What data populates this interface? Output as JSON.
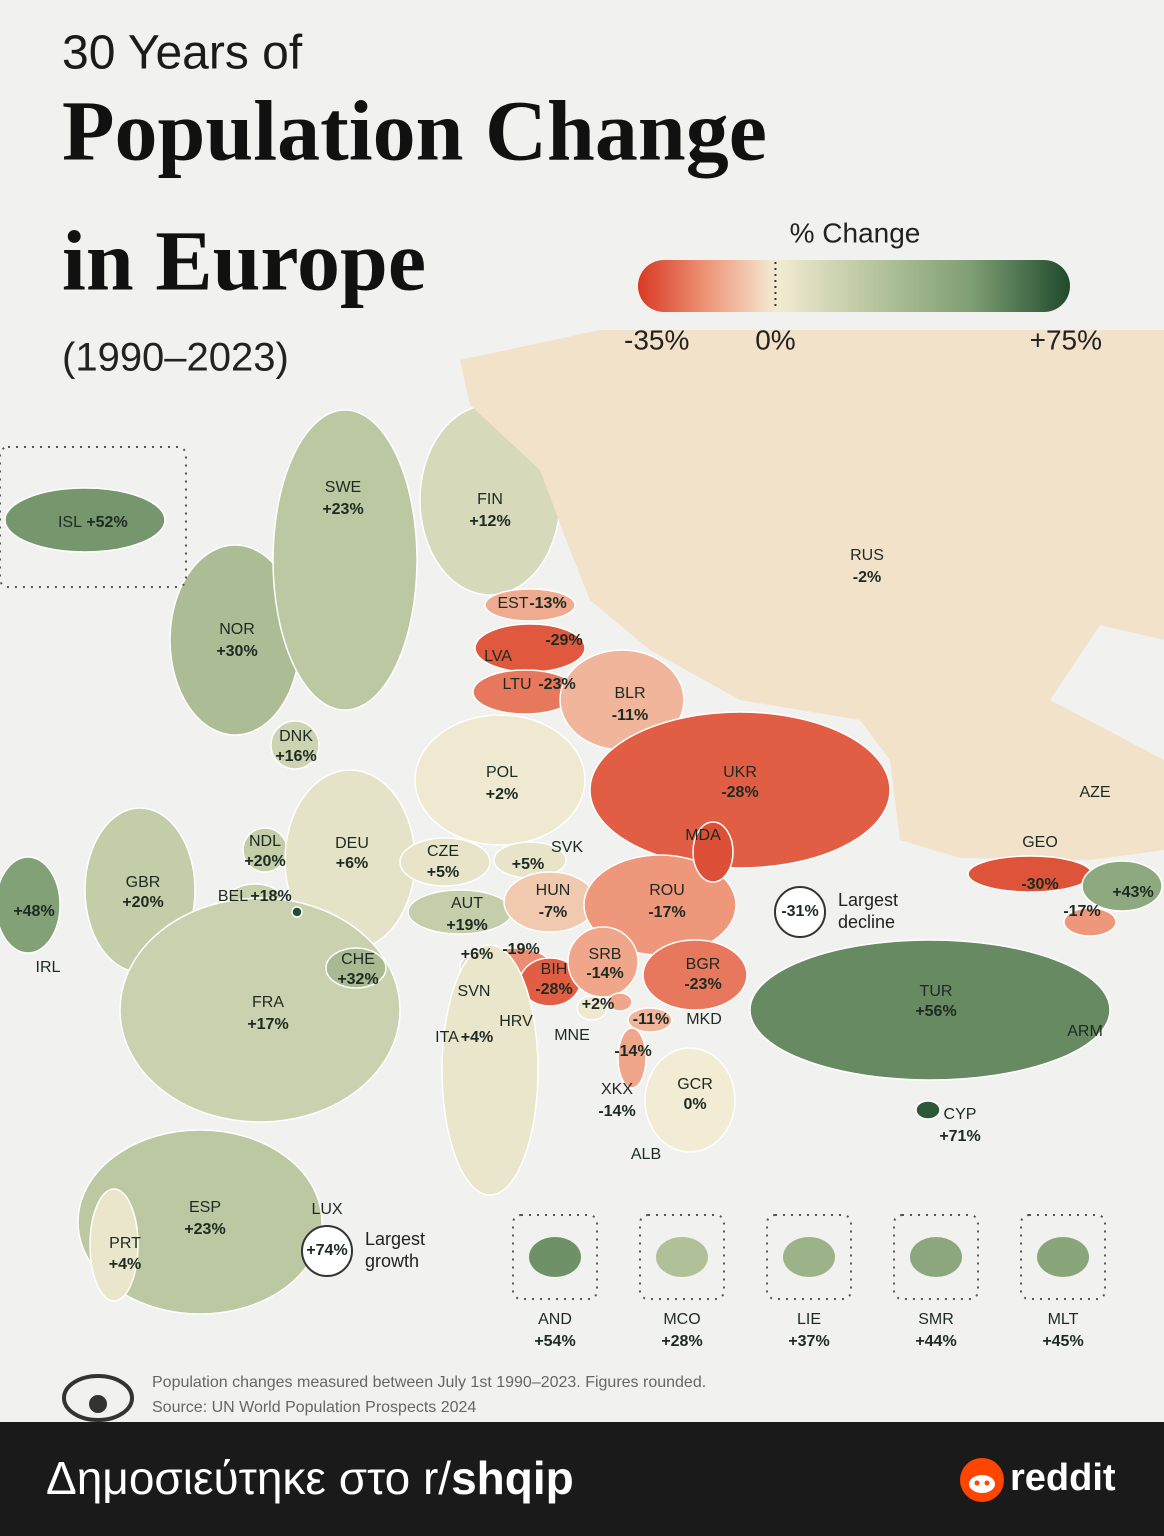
{
  "header": {
    "kicker": "30 Years of",
    "title_line1": "Population Change",
    "title_line2": "in Europe",
    "years": "(1990–2023)"
  },
  "legend": {
    "title": "% Change",
    "min": {
      "value": -35,
      "label": "-35%"
    },
    "mid": {
      "value": 0,
      "label": "0%"
    },
    "max": {
      "value": 75,
      "label": "+75%"
    },
    "negative_colors": [
      "#d83a22",
      "#ee9478",
      "#f3ecd4"
    ],
    "positive_colors": [
      "#f3ecd4",
      "#b7c59d",
      "#7e9e73",
      "#1e4a2b"
    ]
  },
  "countries": [
    {
      "code": "ISL",
      "value": 52,
      "label": "+52%"
    },
    {
      "code": "NOR",
      "value": 30,
      "label": "+30%"
    },
    {
      "code": "SWE",
      "value": 23,
      "label": "+23%"
    },
    {
      "code": "FIN",
      "value": 12,
      "label": "+12%"
    },
    {
      "code": "RUS",
      "value": -2,
      "label": "-2%"
    },
    {
      "code": "EST",
      "value": -13,
      "label": "-13%"
    },
    {
      "code": "LVA",
      "value": -29,
      "label": "-29%"
    },
    {
      "code": "LTU",
      "value": -23,
      "label": "-23%"
    },
    {
      "code": "BLR",
      "value": -11,
      "label": "-11%"
    },
    {
      "code": "DNK",
      "value": 16,
      "label": "+16%"
    },
    {
      "code": "POL",
      "value": 2,
      "label": "+2%"
    },
    {
      "code": "UKR",
      "value": -28,
      "label": "-28%"
    },
    {
      "code": "GBR",
      "value": 20,
      "label": "+20%"
    },
    {
      "code": "IRL",
      "value": 48,
      "label": "+48%"
    },
    {
      "code": "NDL",
      "value": 20,
      "label": "+20%"
    },
    {
      "code": "BEL",
      "value": 18,
      "label": "+18%"
    },
    {
      "code": "DEU",
      "value": 6,
      "label": "+6%"
    },
    {
      "code": "CZE",
      "value": 5,
      "label": "+5%"
    },
    {
      "code": "SVK",
      "value": 5,
      "label": "+5%"
    },
    {
      "code": "AUT",
      "value": 19,
      "label": "+19%"
    },
    {
      "code": "HUN",
      "value": -7,
      "label": "-7%"
    },
    {
      "code": "ROU",
      "value": -17,
      "label": "-17%"
    },
    {
      "code": "MDA",
      "value": -31,
      "label": "-31%",
      "note": [
        "Largest",
        "decline"
      ]
    },
    {
      "code": "GEO",
      "value": -30,
      "label": "-30%"
    },
    {
      "code": "AZE",
      "value": 43,
      "label": "+43%"
    },
    {
      "code": "ARM",
      "value": -17,
      "label": "-17%"
    },
    {
      "code": "FRA",
      "value": 17,
      "label": "+17%"
    },
    {
      "code": "CHE",
      "value": 32,
      "label": "+32%"
    },
    {
      "code": "SVN",
      "value": 6,
      "label": "+6%"
    },
    {
      "code": "HRV",
      "value": -19,
      "label": "-19%"
    },
    {
      "code": "BIH",
      "value": -28,
      "label": "-28%"
    },
    {
      "code": "SRB",
      "value": -14,
      "label": "-14%"
    },
    {
      "code": "BGR",
      "value": -23,
      "label": "-23%"
    },
    {
      "code": "MNE",
      "value": 2,
      "label": "+2%"
    },
    {
      "code": "MKD",
      "value": -11,
      "label": "-11%"
    },
    {
      "code": "ALB",
      "value": -14,
      "label": "-14%"
    },
    {
      "code": "XKX",
      "value": -14,
      "label": "-14%"
    },
    {
      "code": "GCR",
      "value": 0,
      "label": "0%"
    },
    {
      "code": "ITA",
      "value": 4,
      "label": "+4%"
    },
    {
      "code": "TUR",
      "value": 56,
      "label": "+56%"
    },
    {
      "code": "CYP",
      "value": 71,
      "label": "+71%"
    },
    {
      "code": "ESP",
      "value": 23,
      "label": "+23%"
    },
    {
      "code": "PRT",
      "value": 4,
      "label": "+4%"
    },
    {
      "code": "LUX",
      "value": 74,
      "label": "+74%",
      "note": [
        "Largest",
        "growth"
      ]
    }
  ],
  "microstates": [
    {
      "code": "AND",
      "value": 54,
      "label": "+54%"
    },
    {
      "code": "MCO",
      "value": 28,
      "label": "+28%"
    },
    {
      "code": "LIE",
      "value": 37,
      "label": "+37%"
    },
    {
      "code": "SMR",
      "value": 44,
      "label": "+44%"
    },
    {
      "code": "MLT",
      "value": 45,
      "label": "+45%"
    }
  ],
  "footnote": "Population changes measured between July 1st 1990–2023. Figures rounded.",
  "source": "Source: UN World Population Prospects 2024",
  "banner": {
    "text": "Δημοσιεύτηκε στο r/",
    "subreddit": "shqip",
    "brand": "reddit"
  }
}
